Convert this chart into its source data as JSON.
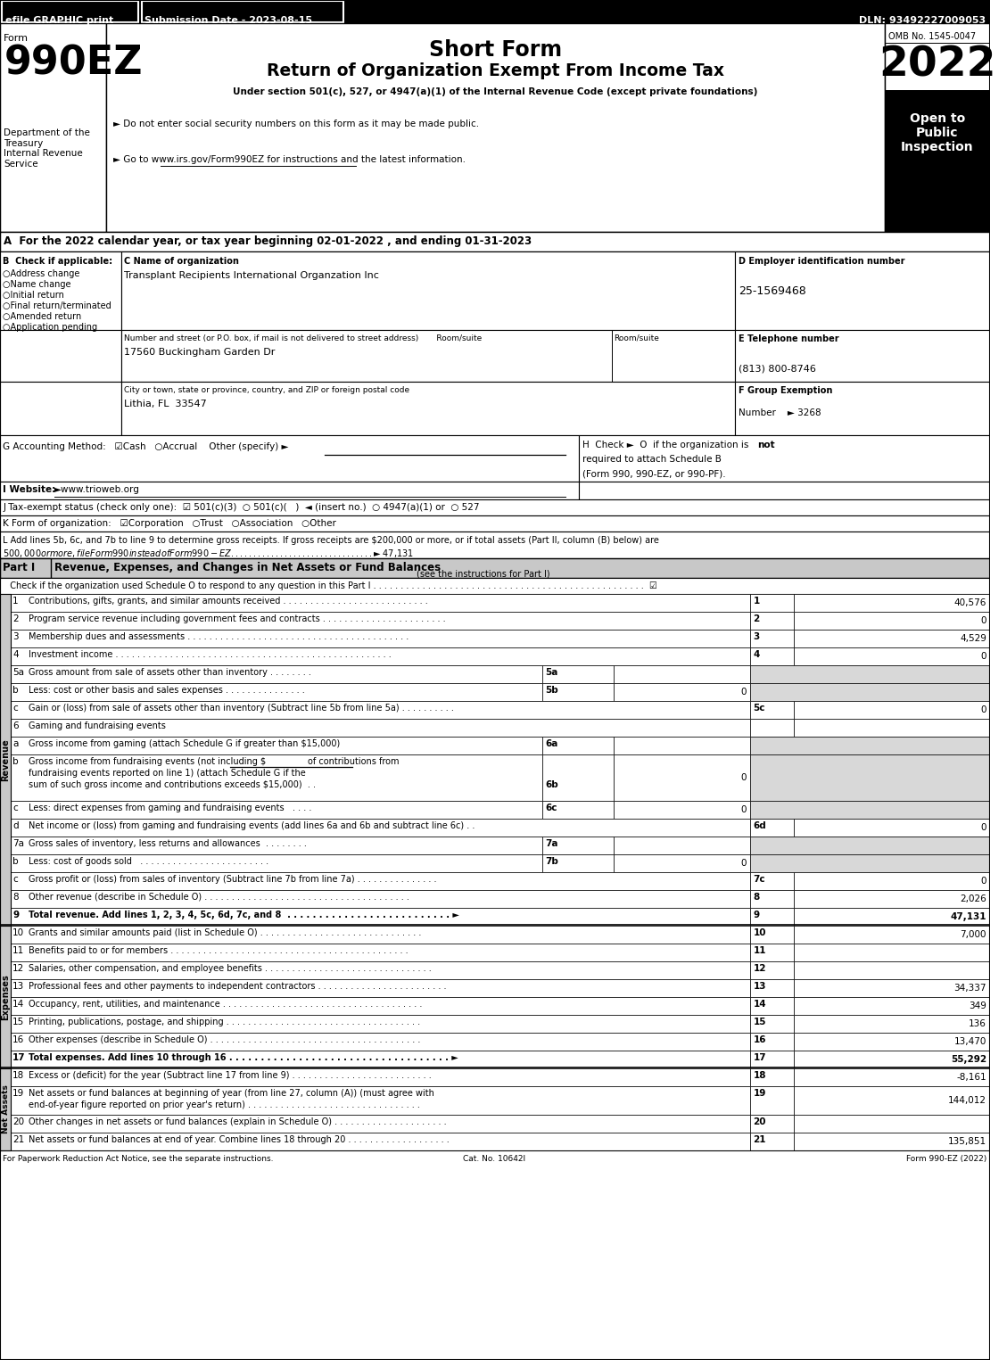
{
  "header_bar": {
    "efile": "efile GRAPHIC print",
    "submission": "Submission Date - 2023-08-15",
    "dln": "DLN: 93492227009053"
  },
  "omb": "OMB No. 1545-0047",
  "year": "2022",
  "open_to": "Open to\nPublic\nInspection",
  "form_number": "990EZ",
  "short_form": "Short Form",
  "return_title": "Return of Organization Exempt From Income Tax",
  "under_section": "Under section 501(c), 527, or 4947(a)(1) of the Internal Revenue Code (except private foundations)",
  "no_ssn": "► Do not enter social security numbers on this form as it may be made public.",
  "go_to": "► Go to www.irs.gov/Form990EZ for instructions and the latest information.",
  "dept": "Department of the\nTreasury\nInternal Revenue\nService",
  "section_a": "A  For the 2022 calendar year, or tax year beginning 02-01-2022 , and ending 01-31-2023",
  "check_label": "B  Check if applicable:",
  "checkboxes": [
    "○Address change",
    "○Name change",
    "○Initial return",
    "○Final return/terminated",
    "○Amended return",
    "○Application pending"
  ],
  "org_name_label": "C Name of organization",
  "org_name": "Transplant Recipients International Organzation Inc",
  "street_label": "Number and street (or P.O. box, if mail is not delivered to street address)       Room/suite",
  "street": "17560 Buckingham Garden Dr",
  "city_label": "City or town, state or province, country, and ZIP or foreign postal code",
  "city": "Lithia, FL  33547",
  "ein_label": "D Employer identification number",
  "ein": "25-1569468",
  "phone_label": "E Telephone number",
  "phone": "(813) 800-8746",
  "grp_label": "F Group Exemption",
  "grp_number": "Number    ► 3268",
  "acct_method": "G Accounting Method:   ☑Cash   ○Accrual    Other (specify) ►",
  "h_check": "H  Check ►  O  if the organization is",
  "h_not": "not",
  "h_rest": "required to attach Schedule B\n(Form 990, 990-EZ, or 990-PF).",
  "website_label": "I Website:",
  "website": "►www.trioweb.org",
  "tax_exempt": "J Tax-exempt status (check only one):  ☑ 501(c)(3)  ○ 501(c)(   )  ◄ (insert no.)  ○ 4947(a)(1) or  ○ 527",
  "form_org": "K Form of organization:   ☑Corporation   ○Trust   ○Association   ○Other",
  "section_l1": "L Add lines 5b, 6c, and 7b to line 9 to determine gross receipts. If gross receipts are $200,000 or more, or if total assets (Part II, column (B) below) are",
  "section_l2": "$500,000 or more, file Form 990 instead of Form 990-EZ . . . . . . . . . . . . . . . . . . . . . . . . . . . . . . . .  ► $ 47,131",
  "part_i_label": "Part I",
  "part_i_title": "Revenue, Expenses, and Changes in Net Assets or Fund Balances",
  "part_i_see": "(see the instructions for Part I)",
  "part_i_check": "Check if the organization used Schedule O to respond to any question in this Part I",
  "footer": "For Paperwork Reduction Act Notice, see the separate instructions.",
  "footer_cat": "Cat. No. 10642I",
  "footer_form": "Form 990-EZ (2022)",
  "gray": "#c8c8c8",
  "lgray": "#d8d8d8"
}
